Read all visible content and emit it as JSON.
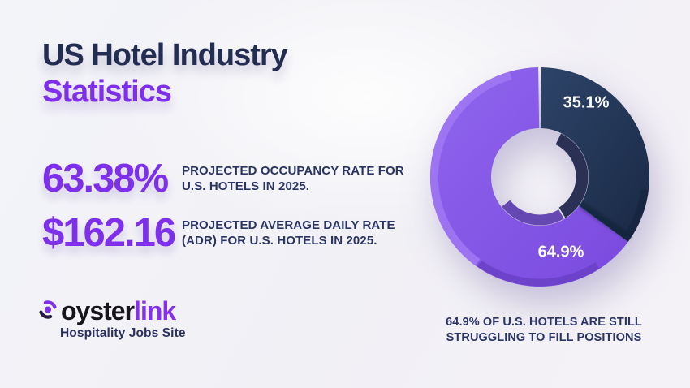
{
  "title": {
    "line1": "US Hotel Industry",
    "line2": "Statistics"
  },
  "stats": [
    {
      "value": "63.38%",
      "desc_line1": "PROJECTED OCCUPANCY RATE FOR",
      "desc_line2": "U.S. HOTELS IN 2025."
    },
    {
      "value": "$162.16",
      "desc_line1": "PROJECTED AVERAGE DAILY RATE",
      "desc_line2": "(ADR) FOR U.S. HOTELS IN 2025."
    }
  ],
  "logo": {
    "brand_part1": "oyster",
    "brand_part2": "link",
    "tagline": "Hospitality Jobs Site",
    "icon": "pearl-arcs-icon"
  },
  "chart_data": {
    "type": "pie",
    "subtype": "3d-donut",
    "direction": "clockwise",
    "start": "top",
    "slices": [
      {
        "label": "35.1%",
        "value": 35.1,
        "color": "#24395d"
      },
      {
        "label": "64.9%",
        "value": 64.9,
        "color": "#8356e8"
      }
    ],
    "labels_color": "#ffffff",
    "caption_line1": "64.9% OF U.S. HOTELS ARE STILL",
    "caption_line2": "STRUGGLING TO FILL POSITIONS"
  },
  "colors": {
    "background": "#f2f1f6",
    "accent_purple": "#7e2fe9",
    "navy_text": "#232d52",
    "desc_text": "#2a3462",
    "navy_light": "#2d4469",
    "navy_dark": "#1a2a46",
    "purple_light": "#8f66ee",
    "purple_dark": "#7a49de",
    "rim_light": "#9e77f2",
    "rim_dark": "#6a41c6",
    "navy_rim": "#16243e",
    "wall_navy": "#2a3154",
    "wall_purple": "#5e3fae",
    "boundary_shadow": "rgba(10,16,38,0.45)",
    "logo_dark": "#241a3e",
    "white": "#ffffff"
  }
}
